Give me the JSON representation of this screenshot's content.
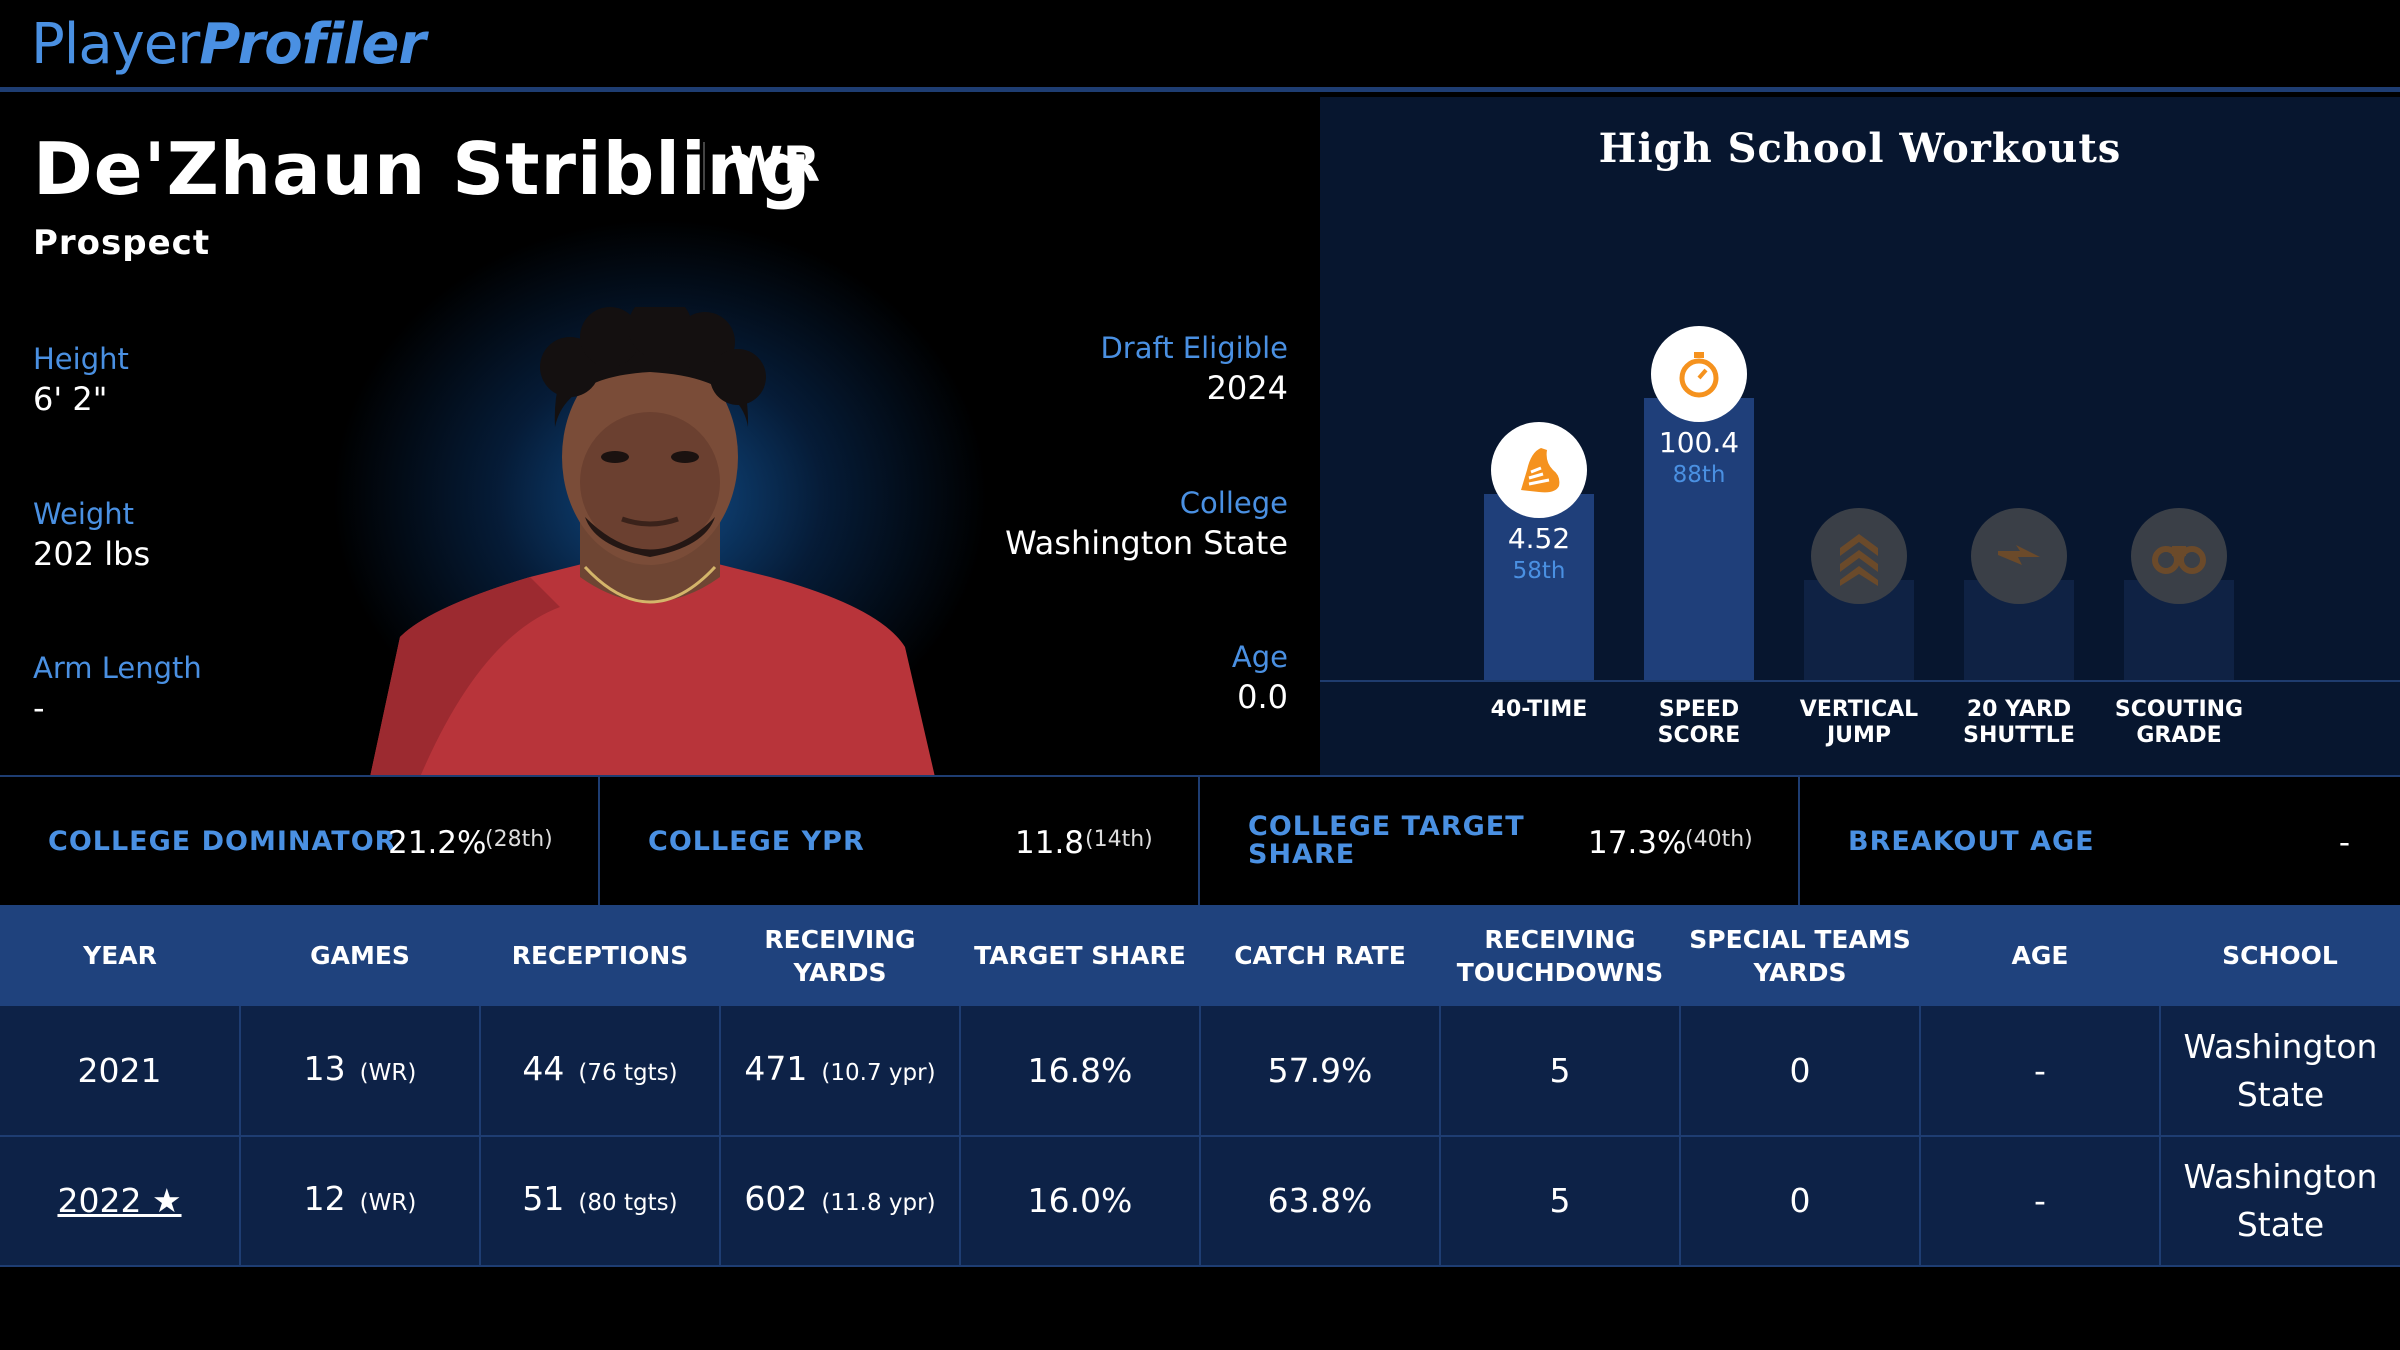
{
  "brand": {
    "part1": "Player",
    "part2": "Profiler"
  },
  "player": {
    "name": "De'Zhaun Stribling",
    "position": "WR",
    "status": "Prospect"
  },
  "bio": {
    "height_label": "Height",
    "height": "6' 2\"",
    "weight_label": "Weight",
    "weight": "202 lbs",
    "arm_label": "Arm Length",
    "arm": "-",
    "draft_label": "Draft Eligible",
    "draft": "2024",
    "college_label": "College",
    "college": "Washington State",
    "age_label": "Age",
    "age": "0.0"
  },
  "workouts": {
    "title": "High School Workouts",
    "items": [
      {
        "label1": "40-TIME",
        "label2": "",
        "value": "4.52",
        "percentile": "58th",
        "percentile_num": 58,
        "icon": "running-shoe-icon",
        "active": true
      },
      {
        "label1": "SPEED",
        "label2": "SCORE",
        "value": "100.4",
        "percentile": "88th",
        "percentile_num": 88,
        "icon": "stopwatch-icon",
        "active": true
      },
      {
        "label1": "VERTICAL",
        "label2": "JUMP",
        "value": "",
        "percentile": "",
        "percentile_num": null,
        "icon": "chevrons-up-icon",
        "active": false
      },
      {
        "label1": "20 YARD",
        "label2": "SHUTTLE",
        "value": "",
        "percentile": "",
        "percentile_num": null,
        "icon": "lightning-icon",
        "active": false
      },
      {
        "label1": "SCOUTING",
        "label2": "GRADE",
        "value": "",
        "percentile": "",
        "percentile_num": null,
        "icon": "binoculars-icon",
        "active": false
      }
    ]
  },
  "metrics": [
    {
      "label": "COLLEGE DOMINATOR",
      "value": "21.2%",
      "rank": "(28th)"
    },
    {
      "label": "COLLEGE YPR",
      "value": "11.8",
      "rank": "(14th)"
    },
    {
      "label1": "COLLEGE TARGET",
      "label2": "SHARE",
      "value": "17.3%",
      "rank": "(40th)"
    },
    {
      "label": "BREAKOUT AGE",
      "value": "-",
      "rank": ""
    }
  ],
  "table": {
    "headers": [
      [
        "YEAR",
        ""
      ],
      [
        "GAMES",
        ""
      ],
      [
        "RECEPTIONS",
        ""
      ],
      [
        "RECEIVING YARDS",
        ""
      ],
      [
        "TARGET SHARE",
        ""
      ],
      [
        "CATCH RATE",
        ""
      ],
      [
        "RECEIVING",
        "TOUCHDOWNS"
      ],
      [
        "SPECIAL TEAMS",
        "YARDS"
      ],
      [
        "AGE",
        ""
      ],
      [
        "SCHOOL",
        ""
      ]
    ],
    "rows": [
      {
        "year": "2021",
        "games": "13",
        "games_sub": "(WR)",
        "rec": "44",
        "rec_sub": "(76 tgts)",
        "yds": "471",
        "yds_sub": "(10.7 ypr)",
        "tshare": "16.8%",
        "catch": "57.9%",
        "td": "5",
        "st": "0",
        "age": "-",
        "school1": "Washington",
        "school2": "State"
      },
      {
        "year": "2022 ★",
        "games": "12",
        "games_sub": "(WR)",
        "rec": "51",
        "rec_sub": "(80 tgts)",
        "yds": "602",
        "yds_sub": "(11.8 ypr)",
        "tshare": "16.0%",
        "catch": "63.8%",
        "td": "5",
        "st": "0",
        "age": "-",
        "school1": "Washington",
        "school2": "State"
      }
    ]
  },
  "colors": {
    "accent": "#4a90e2",
    "panel": "#07162f",
    "bar": "#1f3f7a",
    "icon_orange": "#f5921e"
  }
}
